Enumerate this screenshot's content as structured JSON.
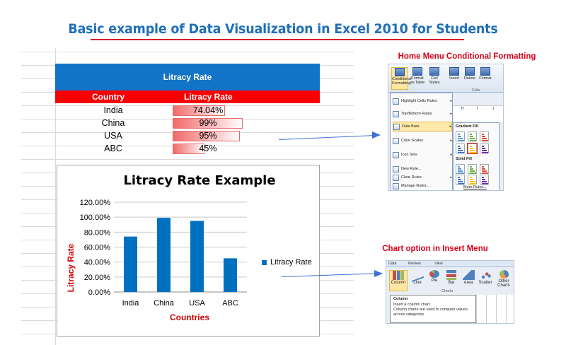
{
  "title": "Basic example of Data Visualization in Excel 2010 for Students",
  "table": {
    "banner": "Litracy Rate",
    "headers": [
      "Country",
      "Litracy Rate"
    ],
    "rows": [
      {
        "country": "India",
        "value": "74.04%",
        "fraction": 0.7404
      },
      {
        "country": "China",
        "value": "99%",
        "fraction": 0.99
      },
      {
        "country": "USA",
        "value": "95%",
        "fraction": 0.95
      },
      {
        "country": "ABC",
        "value": "45%",
        "fraction": 0.45
      }
    ]
  },
  "chart_data": {
    "type": "bar",
    "title": "Litracy Rate Example",
    "xlabel": "Countries",
    "ylabel": "Litracy Rate",
    "categories": [
      "India",
      "China",
      "USA",
      "ABC"
    ],
    "series": [
      {
        "name": "Litracy Rate",
        "values": [
          0.7404,
          0.99,
          0.95,
          0.45
        ]
      }
    ],
    "yticks": [
      "0.00%",
      "20.00%",
      "40.00%",
      "60.00%",
      "80.00%",
      "100.00%",
      "120.00%"
    ],
    "ylim": [
      0,
      1.2
    ],
    "legend_position": "right",
    "grid": true,
    "bar_color": "#0070c0"
  },
  "screenshot1": {
    "caption": "Home Menu Conditional Formatting",
    "ribbon_buttons": [
      {
        "label": "Conditional Formatting",
        "short": "Conditional\nFormatting ▾"
      },
      {
        "label": "Format as Table",
        "short": "Format\nas Table ▾"
      },
      {
        "label": "Cell Styles",
        "short": "Cell\nStyles ▾"
      },
      {
        "label": "Insert",
        "short": "Insert"
      },
      {
        "label": "Delete",
        "short": "Delete"
      },
      {
        "label": "Format",
        "short": "Format"
      }
    ],
    "group_label": "Cells",
    "menu_items": [
      "Highlight Cells Rules",
      "Top/Bottom Rules",
      "Data Bars",
      "Color Scales",
      "Icon Sets",
      "New Rule...",
      "Clear Rules",
      "Manage Rules..."
    ],
    "submenu": {
      "gradient_label": "Gradient Fill",
      "solid_label": "Solid Fill",
      "more": "More Rules...",
      "columns": [
        "H",
        "I",
        "J"
      ]
    }
  },
  "screenshot2": {
    "caption": "Chart option in Insert Menu",
    "tabs": [
      "Data",
      "Review",
      "View"
    ],
    "buttons": [
      "Column",
      "Line",
      "Pie",
      "Bar",
      "Area",
      "Scatter",
      "Other Charts"
    ],
    "group_label": "Charts",
    "tooltip_title": "Column",
    "tooltip_line1": "Insert a column chart.",
    "tooltip_line2": "Column charts are used to compare values across categories."
  },
  "colors": {
    "title": "#1f6fb8",
    "accent_red": "#d6172a",
    "banner_blue": "#1274c7",
    "header_red": "#f90000",
    "arrow": "#3b6fd4"
  }
}
